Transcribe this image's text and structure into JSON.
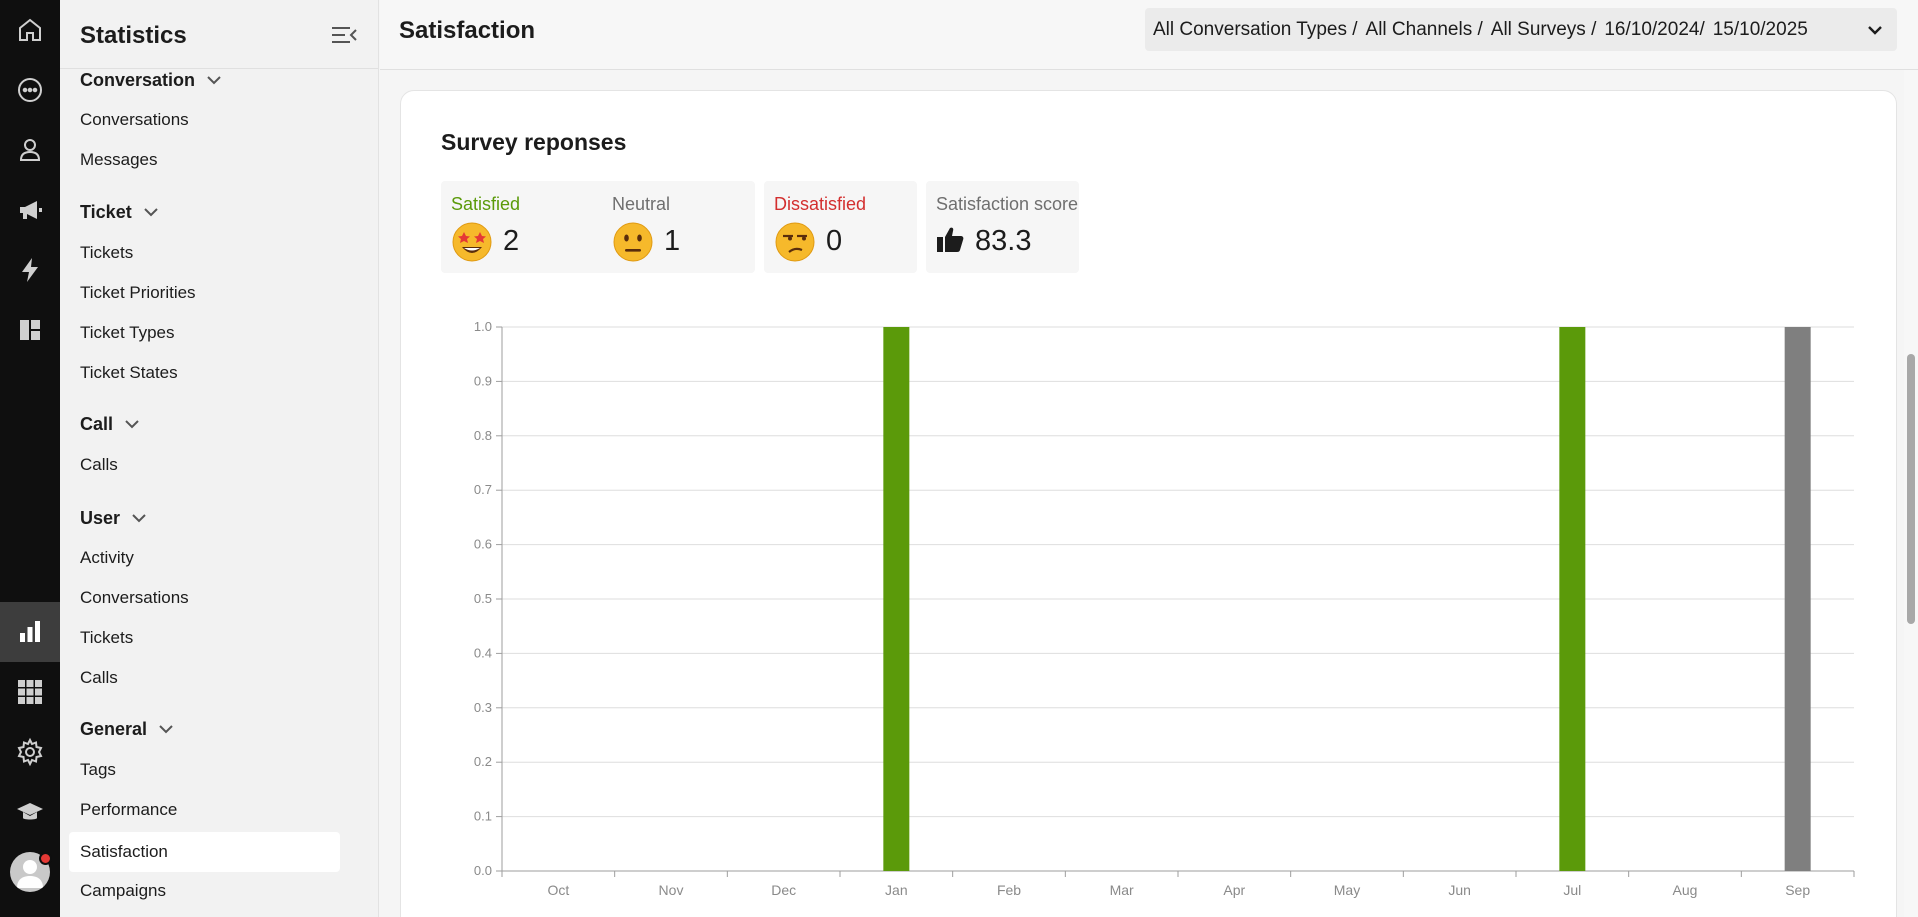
{
  "rail": {
    "icons": [
      "home-icon",
      "chat-icon",
      "user-icon",
      "megaphone-icon",
      "lightning-icon",
      "dashboard-icon",
      "bar-chart-icon",
      "apps-grid-icon",
      "gear-icon",
      "graduation-cap-icon",
      "avatar-icon"
    ],
    "active": "bar-chart-icon"
  },
  "sidebar": {
    "title": "Statistics",
    "groups": [
      {
        "label": "Conversation",
        "items": [
          "Conversations",
          "Messages"
        ]
      },
      {
        "label": "Ticket",
        "items": [
          "Tickets",
          "Ticket Priorities",
          "Ticket Types",
          "Ticket States"
        ]
      },
      {
        "label": "Call",
        "items": [
          "Calls"
        ]
      },
      {
        "label": "User",
        "items": [
          "Activity",
          "Conversations",
          "Tickets",
          "Calls"
        ]
      },
      {
        "label": "General",
        "items": [
          "Tags",
          "Performance",
          "Satisfaction",
          "Campaigns"
        ]
      }
    ],
    "selected": "Satisfaction"
  },
  "header": {
    "title": "Satisfaction",
    "filter": [
      "All Conversation Types /",
      "All Channels /",
      "All Surveys /",
      "16/10/2024/",
      "15/10/2025"
    ]
  },
  "card": {
    "title": "Survey reponses",
    "stats": [
      {
        "label": "Satisfied",
        "value": "2",
        "color": "#5b9a0a",
        "icon": "star-struck-emoji-icon"
      },
      {
        "label": "Neutral",
        "value": "1",
        "color": "#6f6f6f",
        "icon": "neutral-face-emoji-icon"
      },
      {
        "label": "Dissatisfied",
        "value": "0",
        "color": "#d32f2f",
        "icon": "unamused-face-emoji-icon"
      },
      {
        "label": "Satisfaction score",
        "value": "83.3",
        "color": "#6f6f6f",
        "icon": "thumbs-up-icon"
      }
    ]
  },
  "chart_data": {
    "type": "bar",
    "categories": [
      "Oct",
      "Nov",
      "Dec",
      "Jan",
      "Feb",
      "Mar",
      "Apr",
      "May",
      "Jun",
      "Jul",
      "Aug",
      "Sep"
    ],
    "series": [
      {
        "color": "#5b9a0a",
        "values": [
          0,
          0,
          0,
          1,
          0,
          0,
          0,
          0,
          0,
          1,
          0,
          0
        ]
      },
      {
        "color": "#7f7f7f",
        "values": [
          0,
          0,
          0,
          0,
          0,
          0,
          0,
          0,
          0,
          0,
          0,
          1
        ]
      },
      {
        "color": "#d32f2f",
        "values": [
          0,
          0,
          0,
          0,
          0,
          0,
          0,
          0,
          0,
          0,
          0,
          0
        ]
      }
    ],
    "yticks": [
      "0.0",
      "0.1",
      "0.2",
      "0.3",
      "0.4",
      "0.5",
      "0.6",
      "0.7",
      "0.8",
      "0.9",
      "1.0"
    ],
    "ylim": [
      0,
      1
    ],
    "grid": true,
    "title": "",
    "xlabel": "",
    "ylabel": ""
  }
}
